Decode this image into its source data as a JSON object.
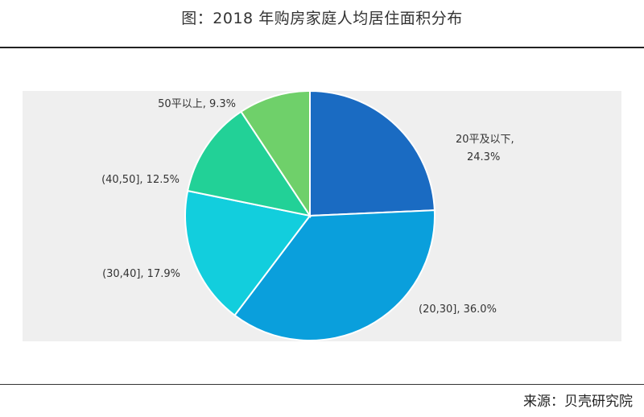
{
  "title": "图：2018 年购房家庭人均居住面积分布",
  "source": "来源：贝壳研究院",
  "chart_data": {
    "type": "pie",
    "title": "图：2018 年购房家庭人均居住面积分布",
    "slices": [
      {
        "label": "20平及以下",
        "value": 24.3,
        "display": "24.3%",
        "color": "#1a6bc2"
      },
      {
        "label": "(20,30]",
        "value": 36.0,
        "display": "36.0%",
        "color": "#0a9fdc"
      },
      {
        "label": "(30,40]",
        "value": 17.9,
        "display": "17.9%",
        "color": "#12cedd"
      },
      {
        "label": "(40,50]",
        "value": 12.5,
        "display": "12.5%",
        "color": "#22d197"
      },
      {
        "label": "50平以上",
        "value": 9.3,
        "display": "9.3%",
        "color": "#6fd06a"
      }
    ],
    "start_angle": "12 o'clock, clockwise"
  }
}
